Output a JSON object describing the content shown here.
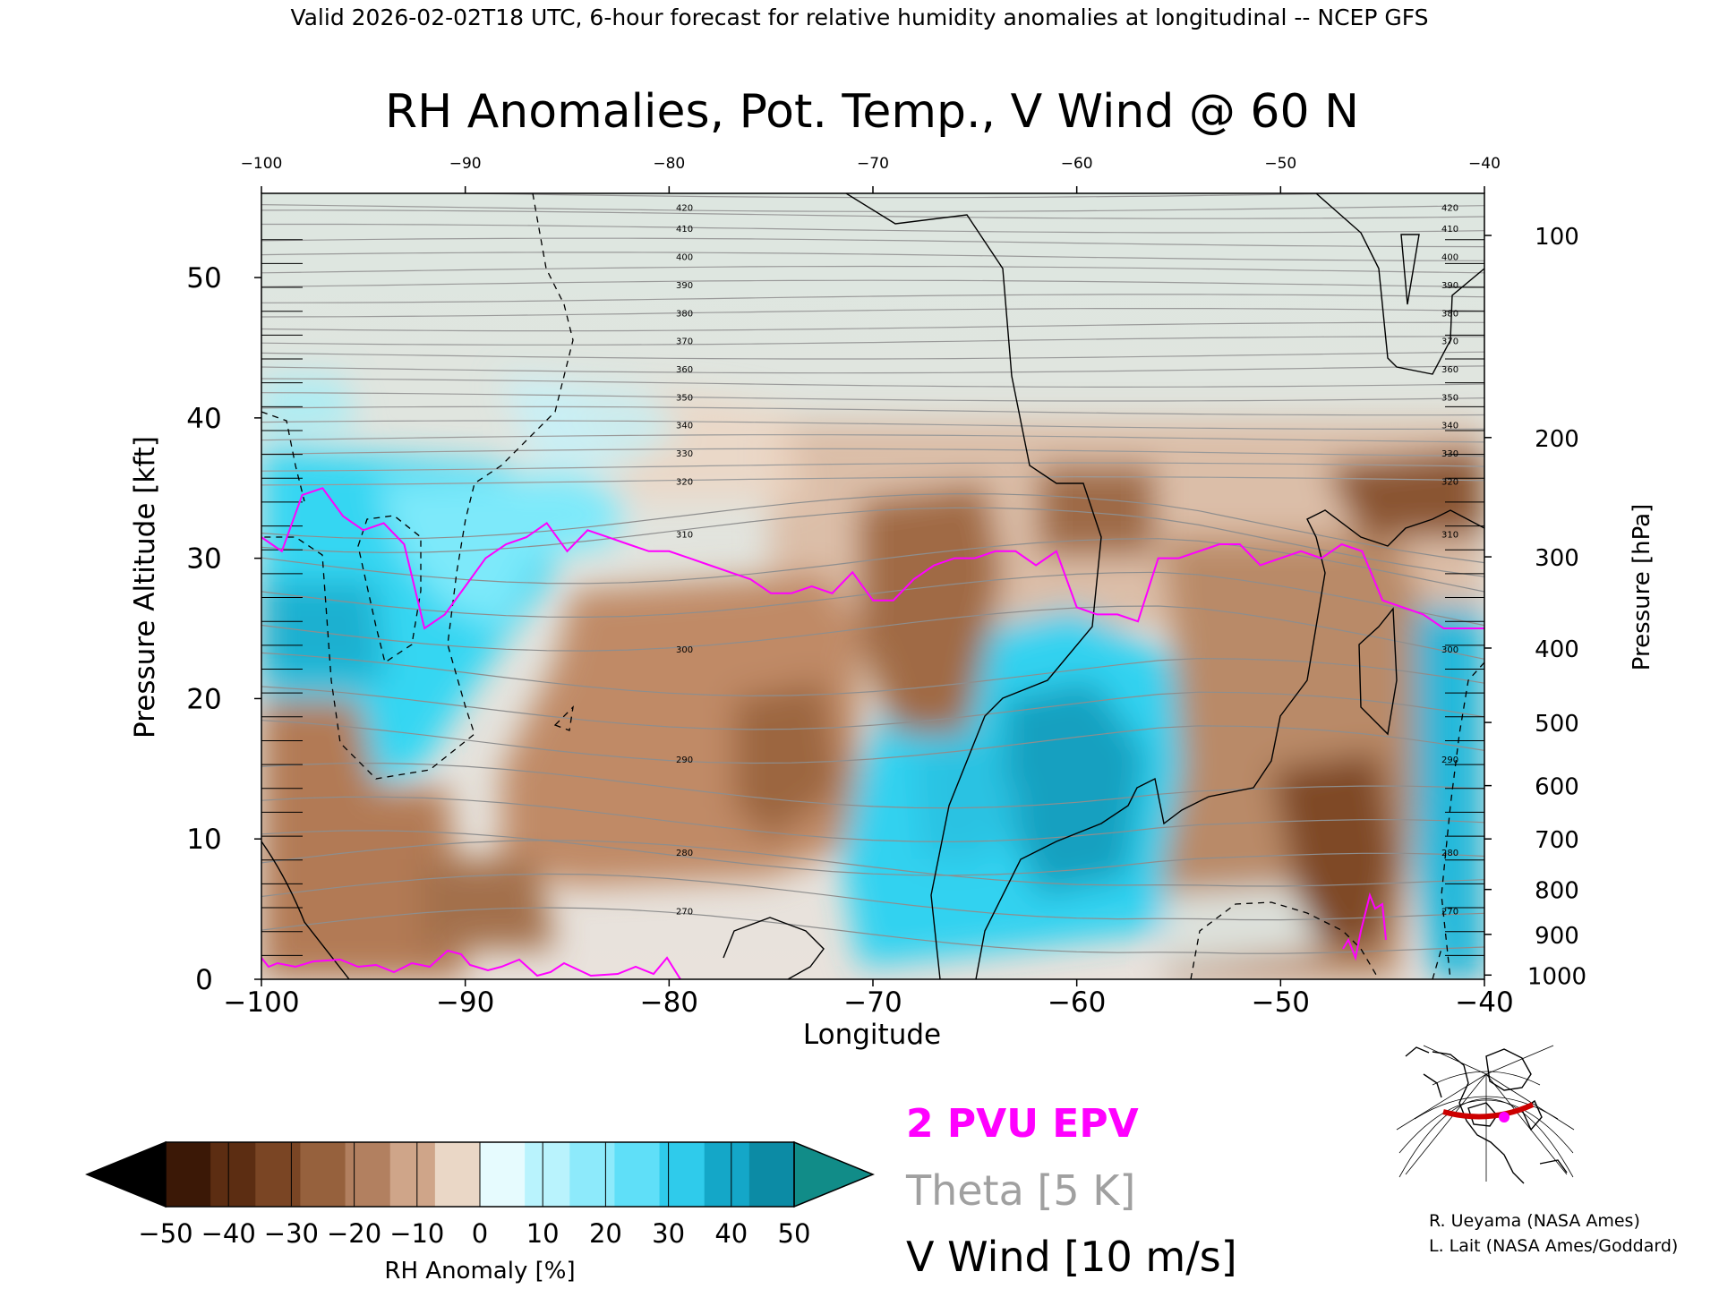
{
  "header": "Valid 2026-02-02T18 UTC, 6-hour forecast for relative humidity anomalies at longitudinal -- NCEP GFS",
  "chart_data": {
    "type": "heatmap",
    "title": "RH Anomalies, Pot. Temp., V Wind @ 60 N",
    "xlabel": "Longitude",
    "ylabel_left": "Pressure Altitude [kft]",
    "ylabel_right": "Pressure [hPa]",
    "xlim": [
      -100,
      -40
    ],
    "ylim_kft": [
      0,
      56
    ],
    "x_ticks": [
      "-100",
      "-90",
      "-80",
      "-70",
      "-60",
      "-50",
      "-40"
    ],
    "y_ticks_kft": [
      {
        "v": 0,
        "label": "0"
      },
      {
        "v": 10,
        "label": "10"
      },
      {
        "v": 20,
        "label": "20"
      },
      {
        "v": 30,
        "label": "30"
      },
      {
        "v": 40,
        "label": "40"
      },
      {
        "v": 50,
        "label": "50"
      }
    ],
    "pressure_ticks": [
      {
        "kft": 53,
        "label": "100"
      },
      {
        "kft": 38.6,
        "label": "200"
      },
      {
        "kft": 30.1,
        "label": "300"
      },
      {
        "kft": 23.6,
        "label": "400"
      },
      {
        "kft": 18.3,
        "label": "500"
      },
      {
        "kft": 13.8,
        "label": "600"
      },
      {
        "kft": 10,
        "label": "700"
      },
      {
        "kft": 6.4,
        "label": "800"
      },
      {
        "kft": 3.2,
        "label": "900"
      },
      {
        "kft": 0.3,
        "label": "1000"
      }
    ],
    "theta_levels": [
      270,
      280,
      290,
      300,
      310,
      320,
      330,
      340,
      350,
      360,
      370,
      380,
      390,
      400,
      410,
      420
    ],
    "epv_2pvu_kft": {
      "lon": [
        -100,
        -99,
        -98,
        -97,
        -96,
        -95,
        -94,
        -93,
        -92,
        -91,
        -90,
        -89,
        -88,
        -87,
        -86,
        -85,
        -84,
        -83,
        -82,
        -81,
        -80,
        -79,
        -78,
        -77,
        -76,
        -75,
        -74,
        -73,
        -72,
        -71,
        -70,
        -69,
        -68,
        -67,
        -66,
        -65,
        -64,
        -63,
        -62,
        -61,
        -60,
        -59,
        -58,
        -57,
        -56,
        -55,
        -54,
        -53,
        -52,
        -51,
        -50,
        -49,
        -48,
        -47,
        -46,
        -45,
        -44,
        -43,
        -42,
        -41,
        -40
      ],
      "kft": [
        31.5,
        30.5,
        34.5,
        35,
        33,
        32,
        32.5,
        31,
        25,
        26,
        28,
        30,
        31,
        31.5,
        32.5,
        30.5,
        32,
        31.5,
        31,
        30.5,
        30.5,
        30,
        29.5,
        29,
        28.5,
        27.5,
        27.5,
        28,
        27.5,
        29,
        27,
        27,
        28.5,
        29.5,
        30,
        30,
        30.5,
        30.5,
        29.5,
        30.5,
        26.5,
        26,
        26,
        25.5,
        30,
        30,
        30.5,
        31,
        31,
        29.5,
        30,
        30.5,
        30,
        31,
        30.5,
        27,
        26.5,
        26,
        25,
        25,
        25
      ]
    },
    "colorbar": {
      "label": "RH Anomaly [%]",
      "ticks": [
        "-50",
        "-40",
        "-30",
        "-20",
        "-10",
        "0",
        "10",
        "20",
        "30",
        "40",
        "50"
      ],
      "colors": [
        "#3b1806",
        "#5c2d12",
        "#7a4524",
        "#96613d",
        "#b28060",
        "#cfa589",
        "#ead7c6",
        "#e6fbfe",
        "#b9f3fd",
        "#8deafb",
        "#5fdff8",
        "#2fcbeb",
        "#14a7c8",
        "#0c8ba5"
      ],
      "under_color": "#000000",
      "over_color": "#118c88"
    },
    "legend": [
      {
        "text": "2 PVU EPV",
        "color": "#ff00ff"
      },
      {
        "text": "Theta [5 K]",
        "color": "#a0a0a0"
      },
      {
        "text": "V Wind [10 m/s]",
        "color": "#000000"
      }
    ]
  },
  "credits": [
    "R. Ueyama (NASA Ames)",
    "L. Lait (NASA Ames/Goddard)"
  ]
}
